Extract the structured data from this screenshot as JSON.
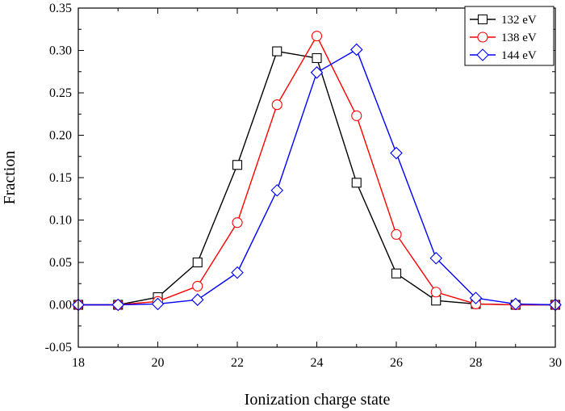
{
  "chart_data": {
    "type": "line",
    "xlabel": "Ionization charge state",
    "ylabel": "Fraction",
    "xlim": [
      18,
      30
    ],
    "ylim": [
      -0.05,
      0.35
    ],
    "xticks": [
      18,
      20,
      22,
      24,
      26,
      28,
      30
    ],
    "xtick_labels": [
      "18",
      "20",
      "22",
      "24",
      "26",
      "28",
      "30"
    ],
    "yticks": [
      -0.05,
      0.0,
      0.05,
      0.1,
      0.15,
      0.2,
      0.25,
      0.3,
      0.35
    ],
    "ytick_labels": [
      "-0.05",
      "0.00",
      "0.05",
      "0.10",
      "0.15",
      "0.20",
      "0.25",
      "0.30",
      "0.35"
    ],
    "legend_position": "top-right",
    "grid": false,
    "x": [
      18,
      19,
      20,
      21,
      22,
      23,
      24,
      25,
      26,
      27,
      28,
      29,
      30
    ],
    "series": [
      {
        "name": "132 eV",
        "color": "#000000",
        "marker": "square",
        "values": [
          0.0,
          0.0,
          0.009,
          0.05,
          0.165,
          0.299,
          0.291,
          0.144,
          0.037,
          0.005,
          0.001,
          0.0,
          0.0
        ]
      },
      {
        "name": "138 eV",
        "color": "#ff0000",
        "marker": "circle",
        "values": [
          0.0,
          0.0,
          0.004,
          0.022,
          0.097,
          0.236,
          0.317,
          0.223,
          0.083,
          0.015,
          0.001,
          0.0,
          0.0
        ]
      },
      {
        "name": "144 eV",
        "color": "#0000ff",
        "marker": "diamond",
        "values": [
          0.0,
          0.0,
          0.001,
          0.006,
          0.038,
          0.135,
          0.274,
          0.301,
          0.179,
          0.055,
          0.008,
          0.001,
          0.0
        ]
      }
    ]
  }
}
